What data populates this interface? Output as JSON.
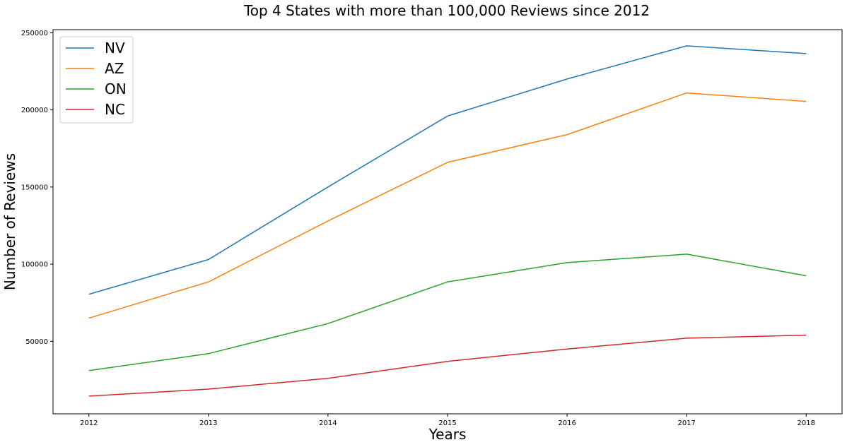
{
  "chart_data": {
    "type": "line",
    "title": "Top 4 States with more than 100,000 Reviews since 2012",
    "xlabel": "Years",
    "ylabel": "Number of Reviews",
    "x": [
      2012,
      2013,
      2014,
      2015,
      2016,
      2017,
      2018
    ],
    "x_tick_labels": [
      "2012",
      "2013",
      "2014",
      "2015",
      "2016",
      "2017",
      "2018"
    ],
    "y_ticks": [
      50000,
      100000,
      150000,
      200000,
      250000
    ],
    "y_tick_labels": [
      "50000",
      "100000",
      "150000",
      "200000",
      "250000"
    ],
    "xlim": [
      2011.7,
      2018.3
    ],
    "ylim": [
      3000,
      252000
    ],
    "grid": false,
    "legend_position": "upper-left",
    "series": [
      {
        "name": "NV",
        "color": "#1f77b4",
        "values": [
          80500,
          103000,
          150000,
          196000,
          220000,
          241500,
          236500
        ]
      },
      {
        "name": "AZ",
        "color": "#ff7f0e",
        "values": [
          65000,
          88500,
          128000,
          166000,
          184000,
          211000,
          205500
        ]
      },
      {
        "name": "ON",
        "color": "#2ca02c",
        "values": [
          31000,
          42000,
          61500,
          88500,
          101000,
          106500,
          92500
        ]
      },
      {
        "name": "NC",
        "color": "#d62728",
        "values": [
          14500,
          19000,
          26000,
          37000,
          45000,
          52000,
          54000
        ]
      }
    ]
  }
}
